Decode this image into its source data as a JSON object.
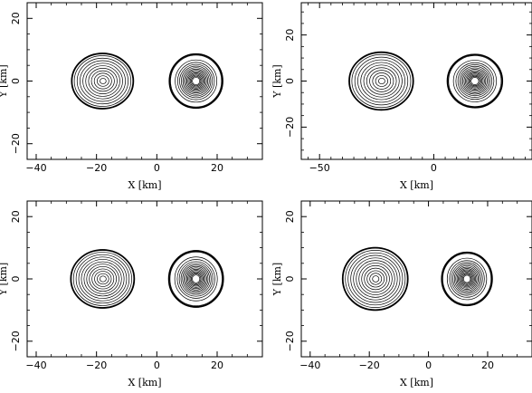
{
  "chart_data": [
    {
      "type": "contour",
      "xlabel": "X [km]",
      "ylabel": "Y [km]",
      "xlim": [
        -43,
        35
      ],
      "ylim": [
        -25,
        25
      ],
      "xticks": [
        -40,
        -20,
        0,
        20
      ],
      "yticks": [
        -20,
        0,
        20
      ],
      "objects": [
        {
          "center": [
            -18,
            0
          ],
          "outer_radius": [
            10.2,
            8.8
          ],
          "levels": 10
        },
        {
          "center": [
            13,
            0
          ],
          "outer_radius": [
            8.8,
            8.6
          ],
          "levels": 14
        }
      ]
    },
    {
      "type": "contour",
      "xlabel": "X [km]",
      "ylabel": "Y [km]",
      "xlim": [
        -58,
        43
      ],
      "ylim": [
        -34,
        34
      ],
      "xticks": [
        -50,
        0
      ],
      "yticks": [
        -20,
        0,
        20
      ],
      "objects": [
        {
          "center": [
            -23,
            0
          ],
          "outer_radius": [
            14,
            12.5
          ],
          "levels": 10
        },
        {
          "center": [
            18,
            0
          ],
          "outer_radius": [
            12,
            11.5
          ],
          "levels": 14
        }
      ]
    },
    {
      "type": "contour",
      "xlabel": "X [km]",
      "ylabel": "Y [km]",
      "xlim": [
        -43,
        35
      ],
      "ylim": [
        -25,
        25
      ],
      "xticks": [
        -40,
        -20,
        0,
        20
      ],
      "yticks": [
        -20,
        0,
        20
      ],
      "objects": [
        {
          "center": [
            -18,
            0
          ],
          "outer_radius": [
            10.5,
            9.3
          ],
          "levels": 11
        },
        {
          "center": [
            13,
            0
          ],
          "outer_radius": [
            9,
            9
          ],
          "levels": 14
        }
      ]
    },
    {
      "type": "contour",
      "xlabel": "X [km]",
      "ylabel": "Y [km]",
      "xlim": [
        -43,
        35
      ],
      "ylim": [
        -25,
        25
      ],
      "xticks": [
        -40,
        -20,
        0,
        20
      ],
      "yticks": [
        -20,
        0,
        20
      ],
      "objects": [
        {
          "center": [
            -18,
            0
          ],
          "outer_radius": [
            11,
            10
          ],
          "levels": 11
        },
        {
          "center": [
            13,
            0
          ],
          "outer_radius": [
            8.5,
            8.5
          ],
          "levels": 14
        }
      ]
    }
  ]
}
